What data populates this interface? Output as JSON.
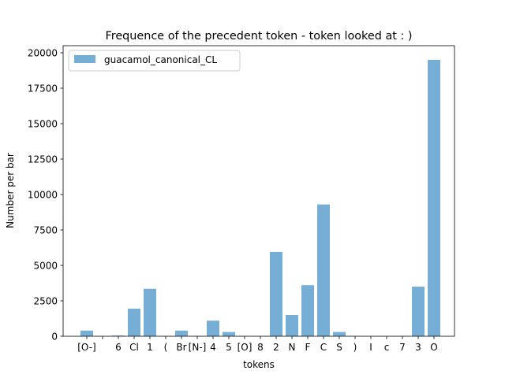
{
  "chart_data": {
    "type": "bar",
    "title": "Frequence of the precedent token - token looked at : )",
    "xlabel": "tokens",
    "ylabel": "Number per bar",
    "ylim": [
      0,
      20500
    ],
    "yticks": [
      0,
      2500,
      5000,
      7500,
      10000,
      12500,
      15000,
      17500,
      20000
    ],
    "grid": false,
    "legend_position": "top-left",
    "categories": [
      "[O-]",
      "",
      "6",
      "Cl",
      "1",
      "(",
      "Br",
      "[N-]",
      "4",
      "5",
      "[O]",
      "8",
      "2",
      "N",
      "F",
      "C",
      "S",
      ")",
      "I",
      "c",
      "7",
      "3",
      "O"
    ],
    "series": [
      {
        "name": "guacamol_canonical_CL",
        "color": "#76aed5",
        "values": [
          400,
          10,
          50,
          1950,
          3350,
          20,
          400,
          20,
          1100,
          300,
          20,
          10,
          5950,
          1500,
          3600,
          9300,
          300,
          10,
          10,
          10,
          20,
          3500,
          19500
        ]
      }
    ]
  }
}
